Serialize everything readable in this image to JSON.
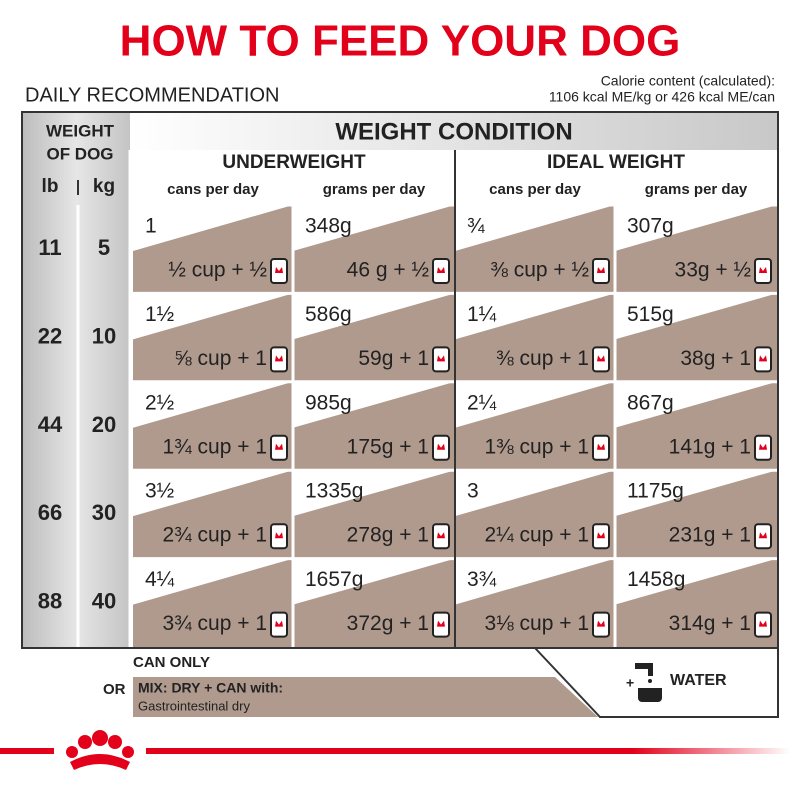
{
  "header": {
    "title": "HOW TO FEED YOUR DOG",
    "subtitle": "DAILY RECOMMENDATION",
    "calorie_line1": "Calorie content (calculated):",
    "calorie_line2": "1106 kcal ME/kg or 426 kcal ME/can"
  },
  "table": {
    "weight_header": [
      "WEIGHT",
      "OF DOG"
    ],
    "units": [
      "lb",
      "kg"
    ],
    "condition_header": "WEIGHT CONDITION",
    "groups": [
      "UNDERWEIGHT",
      "IDEAL WEIGHT"
    ],
    "subheaders": [
      "cans per day",
      "grams per day",
      "cans per day",
      "grams per day"
    ],
    "rows": [
      {
        "lb": "11",
        "kg": "5",
        "cells": [
          {
            "top": "1",
            "bottom": "½ cup + ½"
          },
          {
            "top": "348g",
            "bottom": "46 g + ½"
          },
          {
            "top": "¾",
            "bottom": "⅜ cup + ½"
          },
          {
            "top": "307g",
            "bottom": "33g + ½"
          }
        ]
      },
      {
        "lb": "22",
        "kg": "10",
        "cells": [
          {
            "top": "1½",
            "bottom": "⅝ cup + 1"
          },
          {
            "top": "586g",
            "bottom": "59g + 1"
          },
          {
            "top": "1¼",
            "bottom": "⅜ cup + 1"
          },
          {
            "top": "515g",
            "bottom": "38g + 1"
          }
        ]
      },
      {
        "lb": "44",
        "kg": "20",
        "cells": [
          {
            "top": "2½",
            "bottom": "1¾ cup + 1"
          },
          {
            "top": "985g",
            "bottom": "175g + 1"
          },
          {
            "top": "2¼",
            "bottom": "1⅜ cup + 1"
          },
          {
            "top": "867g",
            "bottom": "141g + 1"
          }
        ]
      },
      {
        "lb": "66",
        "kg": "30",
        "cells": [
          {
            "top": "3½",
            "bottom": "2¾ cup + 1"
          },
          {
            "top": "1335g",
            "bottom": "278g + 1"
          },
          {
            "top": "3",
            "bottom": "2¼ cup + 1"
          },
          {
            "top": "1175g",
            "bottom": "231g + 1"
          }
        ]
      },
      {
        "lb": "88",
        "kg": "40",
        "cells": [
          {
            "top": "4¼",
            "bottom": "3¾ cup + 1"
          },
          {
            "top": "1657g",
            "bottom": "372g + 1"
          },
          {
            "top": "3¾",
            "bottom": "3⅛ cup + 1"
          },
          {
            "top": "1458g",
            "bottom": "314g + 1"
          }
        ]
      }
    ]
  },
  "footer": {
    "can_only": "CAN ONLY",
    "or": "OR",
    "mix": "MIX: DRY + CAN with:",
    "mix_product": "Gastrointestinal dry",
    "water": "WATER"
  }
}
